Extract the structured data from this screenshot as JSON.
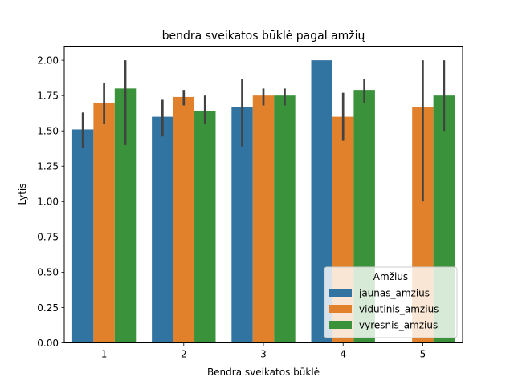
{
  "chart_data": {
    "type": "bar",
    "title": "bendra sveikatos būklė pagal amžių",
    "xlabel": "Bendra sveikatos būklė",
    "ylabel": "Lytis",
    "categories": [
      "1",
      "2",
      "3",
      "4",
      "5"
    ],
    "ylim": [
      0,
      2.1
    ],
    "yticks": [
      "0.00",
      "0.25",
      "0.50",
      "0.75",
      "1.00",
      "1.25",
      "1.50",
      "1.75",
      "2.00"
    ],
    "legend": {
      "title": "Amžius",
      "position": "lower-right"
    },
    "grid": false,
    "series": [
      {
        "name": "jaunas_amzius",
        "color": "#3274a1",
        "values": [
          1.51,
          1.6,
          1.67,
          2.0,
          null
        ],
        "ci_low": [
          1.38,
          1.46,
          1.39,
          2.0,
          null
        ],
        "ci_high": [
          1.63,
          1.72,
          1.87,
          2.0,
          null
        ]
      },
      {
        "name": "vidutinis_amzius",
        "color": "#e1812c",
        "values": [
          1.7,
          1.74,
          1.75,
          1.6,
          1.67
        ],
        "ci_low": [
          1.55,
          1.68,
          1.68,
          1.43,
          1.0
        ],
        "ci_high": [
          1.84,
          1.79,
          1.8,
          1.77,
          2.0
        ]
      },
      {
        "name": "vyresnis_amzius",
        "color": "#3a923a",
        "values": [
          1.8,
          1.64,
          1.75,
          1.79,
          1.75
        ],
        "ci_low": [
          1.4,
          1.55,
          1.68,
          1.7,
          1.5
        ],
        "ci_high": [
          2.0,
          1.75,
          1.8,
          1.87,
          2.0
        ]
      }
    ]
  }
}
